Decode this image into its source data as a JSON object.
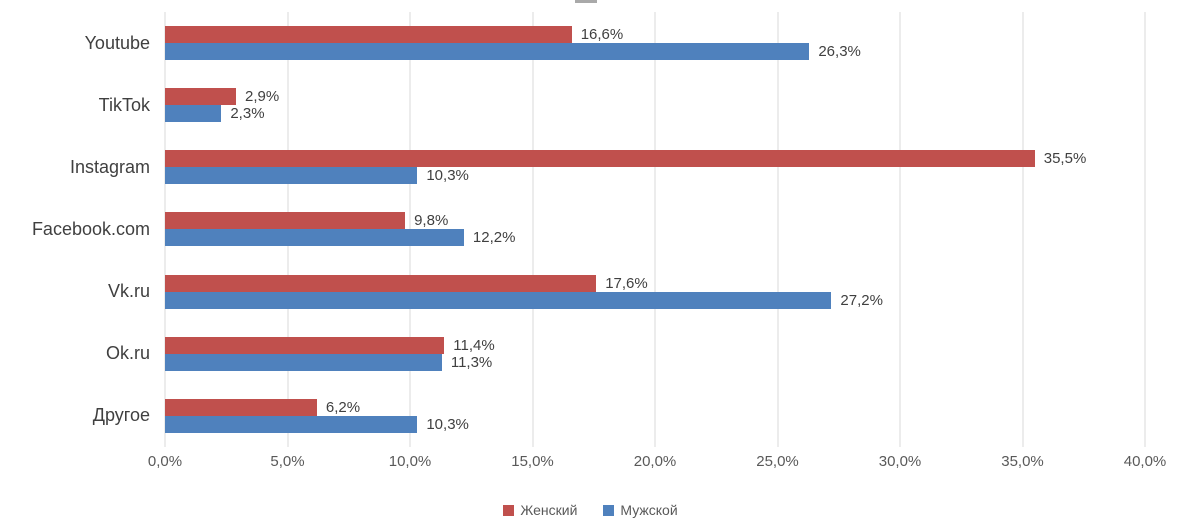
{
  "chart_data": {
    "type": "bar",
    "orientation": "horizontal",
    "title": "",
    "categories": [
      "Youtube",
      "TikTok",
      "Instagram",
      "Facebook.com",
      "Vk.ru",
      "Ok.ru",
      "Другое"
    ],
    "series": [
      {
        "name": "Женский",
        "color": "#C0504D",
        "values": [
          16.6,
          2.9,
          35.5,
          9.8,
          17.6,
          11.4,
          6.2
        ]
      },
      {
        "name": "Мужской",
        "color": "#4F81BD",
        "values": [
          26.3,
          2.3,
          10.3,
          12.2,
          27.2,
          11.3,
          10.3
        ]
      }
    ],
    "value_labels": [
      [
        "16,6%",
        "2,9%",
        "35,5%",
        "9,8%",
        "17,6%",
        "11,4%",
        "6,2%"
      ],
      [
        "26,3%",
        "2,3%",
        "10,3%",
        "12,2%",
        "27,2%",
        "11,3%",
        "10,3%"
      ]
    ],
    "xlim": [
      0,
      40
    ],
    "x_ticks": [
      "0,0%",
      "5,0%",
      "10,0%",
      "15,0%",
      "20,0%",
      "25,0%",
      "30,0%",
      "35,0%",
      "40,0%"
    ],
    "grid": true,
    "gridline_color": "#D9D9D9",
    "legend_position": "bottom"
  }
}
